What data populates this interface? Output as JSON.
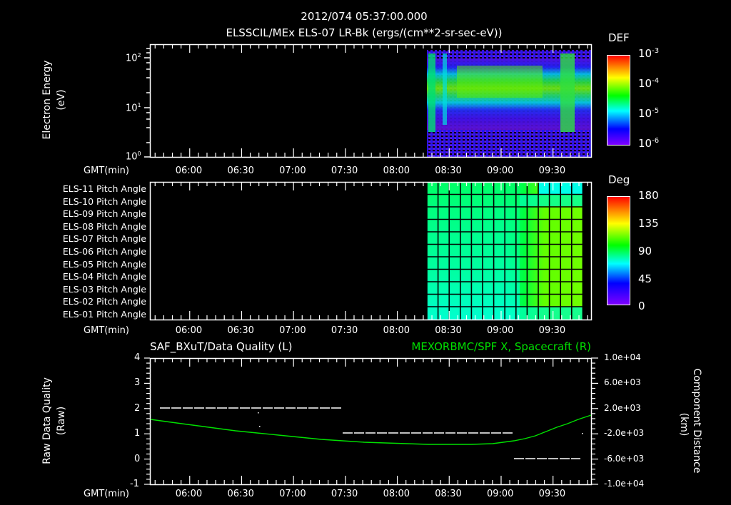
{
  "header": {
    "timestamp": "2012/074 05:37:00.000",
    "title": "ELSSCIL/MEx ELS-07 LR-Bk  (ergs/(cm**2-sr-sec-eV))"
  },
  "panel1": {
    "ylabel": "Electron Energy",
    "yunit": "(eV)",
    "y_ticks": [
      "10",
      "10",
      "10"
    ],
    "y_exps": [
      "2",
      "1",
      "0"
    ],
    "xlabel": "GMT(min)",
    "x_ticks": [
      "06:00",
      "06:30",
      "07:00",
      "07:30",
      "08:00",
      "08:30",
      "09:00",
      "09:30"
    ],
    "colorbar": {
      "title": "DEF",
      "labels": [
        "10",
        "10",
        "10",
        "10"
      ],
      "exps": [
        "-3",
        "-4",
        "-5",
        "-6"
      ]
    }
  },
  "panel2": {
    "row_labels": [
      "ELS-11 Pitch Angle",
      "ELS-10 Pitch Angle",
      "ELS-09 Pitch Angle",
      "ELS-08 Pitch Angle",
      "ELS-07 Pitch Angle",
      "ELS-06 Pitch Angle",
      "ELS-05 Pitch Angle",
      "ELS-04 Pitch Angle",
      "ELS-03 Pitch Angle",
      "ELS-02 Pitch Angle",
      "ELS-01 Pitch Angle"
    ],
    "xlabel": "GMT(min)",
    "x_ticks": [
      "06:00",
      "06:30",
      "07:00",
      "07:30",
      "08:00",
      "08:30",
      "09:00",
      "09:30"
    ],
    "colorbar": {
      "title": "Deg",
      "labels": [
        "180",
        "135",
        "90",
        "45",
        "0"
      ]
    }
  },
  "panel3": {
    "left_title": "SAF_BXuT/Data Quality (L)",
    "right_title": "MEXORBMC/SPF X, Spacecraft (R)",
    "ylabel": "Raw Data Quality",
    "yunit": "(Raw)",
    "y_ticks": [
      "4",
      "3",
      "2",
      "1",
      "0",
      "-1"
    ],
    "y2label": "Component Distance",
    "y2unit": "(km)",
    "y2_ticks": [
      "1.0e+04",
      "6.0e+03",
      "2.0e+03",
      "-2.0e+03",
      "-6.0e+03",
      "-1.0e+04"
    ],
    "xlabel": "GMT(min)",
    "x_ticks": [
      "06:00",
      "06:30",
      "07:00",
      "07:30",
      "08:00",
      "08:30",
      "09:00",
      "09:30"
    ]
  },
  "colors": {
    "background": "#000000",
    "axis": "#ffffff",
    "trace_green": "#00e000",
    "quality_white": "#ffffff"
  },
  "chart_data": [
    {
      "type": "heatmap",
      "title": "ELSSCIL/MEx ELS-07 LR-Bk  (ergs/(cm**2-sr-sec-eV))",
      "xlabel": "GMT(min)",
      "ylabel": "Electron Energy (eV)",
      "yscale": "log",
      "ylim": [
        1,
        150
      ],
      "x_range": [
        "05:37",
        "09:52"
      ],
      "x_ticks": [
        "06:00",
        "06:30",
        "07:00",
        "07:30",
        "08:00",
        "08:30",
        "09:00",
        "09:30"
      ],
      "colorbar": {
        "label": "DEF",
        "scale": "log",
        "range": [
          1e-06,
          0.001
        ]
      },
      "notes": "Data present from ~08:20 to end; bright band ~20-60 eV (~1e-4) 08:30-09:15; spikes near 08:21-08:30 and 09:25-09:35"
    },
    {
      "type": "heatmap",
      "title": "ELS Pitch Angle",
      "xlabel": "GMT(min)",
      "categories": [
        "ELS-01",
        "ELS-02",
        "ELS-03",
        "ELS-04",
        "ELS-05",
        "ELS-06",
        "ELS-07",
        "ELS-08",
        "ELS-09",
        "ELS-10",
        "ELS-11"
      ],
      "x_range": [
        "05:37",
        "09:52"
      ],
      "colorbar": {
        "label": "Deg",
        "range": [
          0,
          180
        ],
        "ticks": [
          0,
          45,
          90,
          135,
          180
        ]
      },
      "notes": "Data from ~08:20 to ~09:48; values ~60-100 deg before 09:10, ~80-120 deg (middle sensors) after 09:10; ELS-11 ~55 deg after 09:15"
    },
    {
      "type": "line",
      "title": "SAF_BXuT/Data Quality (L) / MEXORBMC/SPF X, Spacecraft (R)",
      "xlabel": "GMT(min)",
      "ylabel": "Raw Data Quality (Raw)",
      "y2label": "Component Distance (km)",
      "ylim": [
        -1,
        4
      ],
      "y2lim": [
        -10000,
        10000
      ],
      "series": [
        {
          "name": "Data Quality (L)",
          "axis": "left",
          "x": [
            "05:45",
            "07:28",
            "07:28",
            "09:08",
            "09:08",
            "09:48"
          ],
          "values": [
            2,
            2,
            1,
            1,
            0,
            0
          ]
        },
        {
          "name": "SPF X, Spacecraft (R)",
          "axis": "right",
          "x": [
            "05:37",
            "06:00",
            "06:30",
            "07:00",
            "07:30",
            "08:00",
            "08:30",
            "09:00",
            "09:30",
            "09:52"
          ],
          "values": [
            400,
            -300,
            -1400,
            -2400,
            -3200,
            -3700,
            -3700,
            -3000,
            -800,
            2600
          ]
        }
      ]
    }
  ]
}
